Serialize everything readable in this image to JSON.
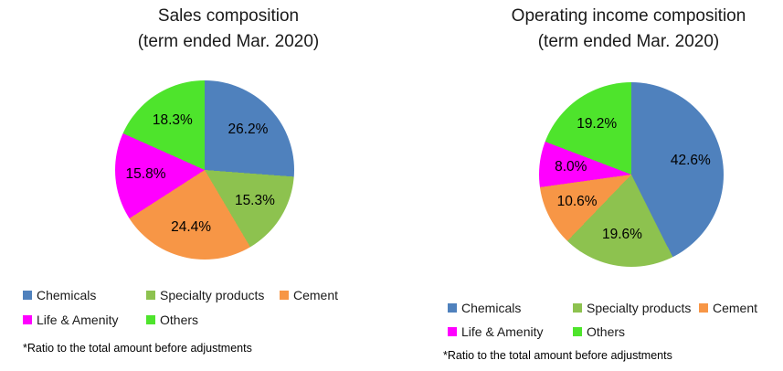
{
  "chart_data": [
    {
      "type": "pie",
      "title": "Sales composition (term ended Mar. 2020)",
      "title_lines": [
        "Sales composition",
        "(term ended Mar. 2020)"
      ],
      "start_angle_deg": 0,
      "direction": "clockwise",
      "categories": [
        "Chemicals",
        "Specialty products",
        "Cement",
        "Life & Amenity",
        "Others"
      ],
      "values": [
        26.2,
        15.3,
        24.4,
        15.8,
        18.3
      ],
      "labels": [
        "26.2%",
        "15.3%",
        "24.4%",
        "15.8%",
        "18.3%"
      ],
      "colors": [
        "#4F81BD",
        "#8DC24F",
        "#F79646",
        "#FF00FF",
        "#4EE42C"
      ],
      "legend_position": "bottom",
      "footnote": "*Ratio to the total amount before adjustments"
    },
    {
      "type": "pie",
      "title": "Operating income composition (term ended Mar. 2020)",
      "title_lines": [
        "Operating income composition",
        "(term ended Mar. 2020)"
      ],
      "start_angle_deg": 0,
      "direction": "clockwise",
      "categories": [
        "Chemicals",
        "Specialty products",
        "Cement",
        "Life & Amenity",
        "Others"
      ],
      "values": [
        42.6,
        19.6,
        10.6,
        8.0,
        19.2
      ],
      "labels": [
        "42.6%",
        "19.6%",
        "10.6%",
        "8.0%",
        "19.2%"
      ],
      "colors": [
        "#4F81BD",
        "#8DC24F",
        "#F79646",
        "#FF00FF",
        "#4EE42C"
      ],
      "legend_position": "bottom",
      "footnote": "*Ratio to the total amount before adjustments"
    }
  ]
}
